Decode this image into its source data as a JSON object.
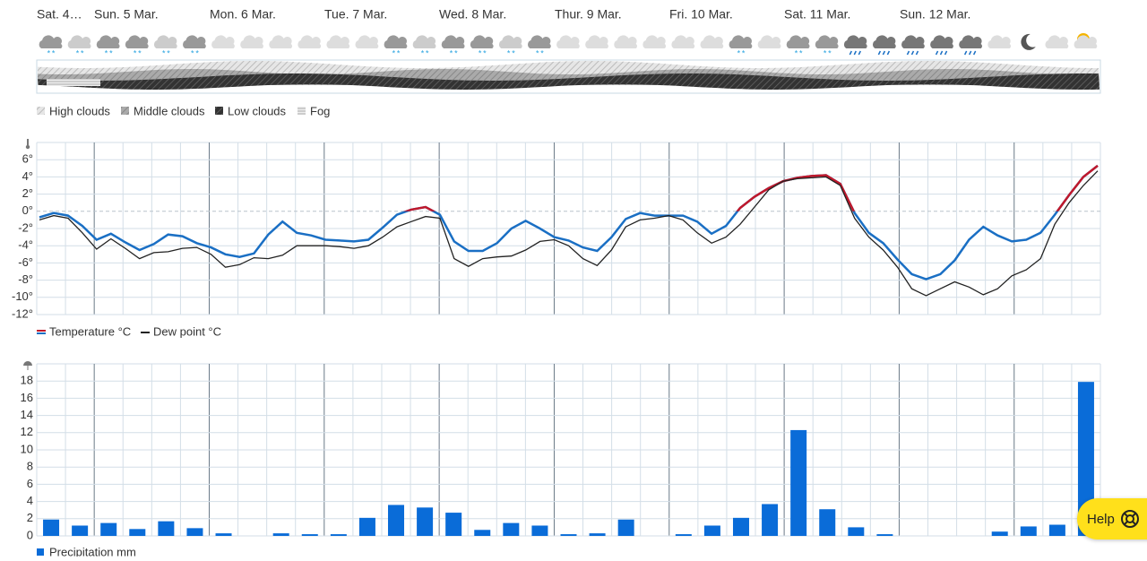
{
  "days": [
    "Sat. 4…",
    "Sun. 5 Mar.",
    "Mon. 6 Mar.",
    "Tue. 7 Mar.",
    "Wed. 8 Mar.",
    "Thur. 9 Mar.",
    "Fri. 10 Mar.",
    "Sat. 11 Mar.",
    "Sun. 12 Mar."
  ],
  "cloud_legend": [
    "High clouds",
    "Middle clouds",
    "Low clouds",
    "Fog"
  ],
  "help": "Help",
  "chart_data": [
    {
      "type": "line",
      "ylim": [
        -12,
        8
      ],
      "yticks": [
        {
          "value": 6,
          "label": "6°"
        },
        {
          "value": 4,
          "label": "4°"
        },
        {
          "value": 2,
          "label": "2°"
        },
        {
          "value": 0,
          "label": "0°"
        },
        {
          "value": -2,
          "label": "-2°"
        },
        {
          "value": -4,
          "label": "-4°"
        },
        {
          "value": -6,
          "label": "-6°"
        },
        {
          "value": -8,
          "label": "-8°"
        },
        {
          "value": -10,
          "label": "-10°"
        },
        {
          "value": -12,
          "label": "-12°"
        }
      ],
      "grid": true,
      "warm_color": "#c0182b",
      "series": [
        {
          "name": "Temperature °C",
          "color": "#1a6fc4",
          "values": [
            -0.7,
            -0.2,
            -0.5,
            -1.7,
            -3.3,
            -2.6,
            -3.6,
            -4.5,
            -3.8,
            -2.7,
            -2.9,
            -3.7,
            -4.2,
            -5.0,
            -5.3,
            -4.9,
            -2.7,
            -1.2,
            -2.5,
            -2.8,
            -3.3,
            -3.4,
            -3.5,
            -3.3,
            -1.9,
            -0.4,
            0.2,
            0.5,
            -0.4,
            -3.5,
            -4.6,
            -4.6,
            -3.7,
            -2.0,
            -1.1,
            -2.0,
            -3.0,
            -3.4,
            -4.2,
            -4.6,
            -3.0,
            -0.9,
            -0.2,
            -0.5,
            -0.5,
            -0.5,
            -1.2,
            -2.6,
            -1.7,
            0.4,
            1.7,
            2.7,
            3.5,
            3.9,
            4.1,
            4.2,
            3.2,
            -0.2,
            -2.5,
            -3.7,
            -5.6,
            -7.3,
            -7.9,
            -7.3,
            -5.7,
            -3.3,
            -1.8,
            -2.8,
            -3.5,
            -3.3,
            -2.5,
            -0.4,
            1.9,
            4.0,
            5.3
          ]
        },
        {
          "name": "Dew point °C",
          "color": "#222222",
          "values": [
            -1.0,
            -0.5,
            -0.8,
            -2.5,
            -4.4,
            -3.2,
            -4.3,
            -5.5,
            -4.8,
            -4.7,
            -4.3,
            -4.2,
            -5.0,
            -6.5,
            -6.2,
            -5.4,
            -5.5,
            -5.1,
            -4.0,
            -4.0,
            -4.0,
            -4.1,
            -4.3,
            -4.0,
            -3.0,
            -1.8,
            -1.2,
            -0.6,
            -0.8,
            -5.5,
            -6.4,
            -5.5,
            -5.3,
            -5.2,
            -4.5,
            -3.5,
            -3.3,
            -4.0,
            -5.5,
            -6.3,
            -4.5,
            -1.8,
            -1.0,
            -0.8,
            -0.5,
            -1.0,
            -2.5,
            -3.7,
            -3.0,
            -1.5,
            0.5,
            2.5,
            3.5,
            3.8,
            3.9,
            4.0,
            3.0,
            -0.8,
            -3.0,
            -4.5,
            -6.5,
            -9.0,
            -9.8,
            -9.0,
            -8.2,
            -8.8,
            -9.7,
            -9.0,
            -7.5,
            -6.8,
            -5.5,
            -1.5,
            1.0,
            3.0,
            4.7
          ]
        }
      ]
    },
    {
      "type": "bar",
      "ylim": [
        0,
        20
      ],
      "yticks": [
        0,
        2,
        4,
        6,
        8,
        10,
        12,
        14,
        16,
        18
      ],
      "grid": true,
      "series": [
        {
          "name": "Precipitation mm",
          "color": "#0a6cd8",
          "values": [
            1.9,
            1.2,
            1.5,
            0.8,
            1.7,
            0.9,
            0.3,
            0,
            0.3,
            0.2,
            0.2,
            2.1,
            3.6,
            3.3,
            2.7,
            0.7,
            1.5,
            1.2,
            0.2,
            0.3,
            1.9,
            0,
            0.2,
            1.2,
            2.1,
            3.7,
            12.3,
            3.1,
            1.0,
            0.2,
            0,
            0,
            0,
            0.5,
            1.1,
            1.3,
            17.9
          ]
        }
      ]
    }
  ]
}
